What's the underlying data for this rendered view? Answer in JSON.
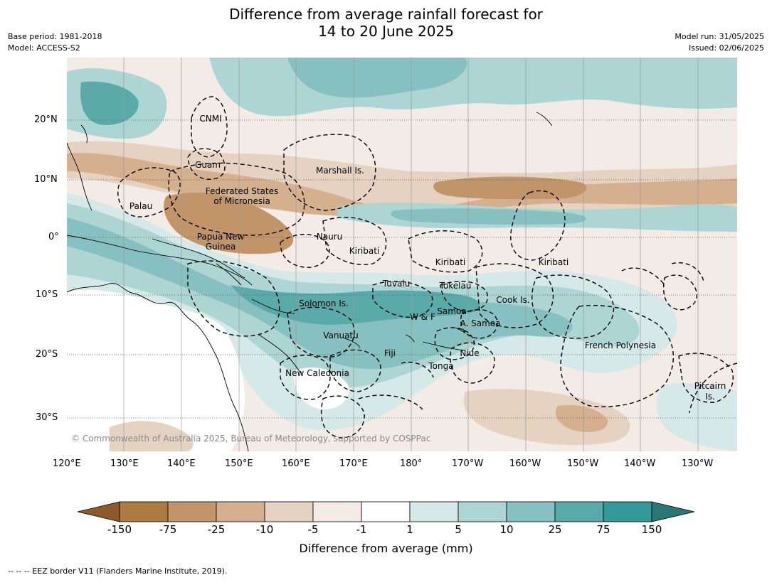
{
  "header": {
    "title_line1": "Difference from average rainfall forecast for",
    "title_line2": "14 to 20 June 2025",
    "base_period": "Base period: 1981-2018",
    "model": "Model: ACCESS-S2",
    "model_run": "Model run: 31/05/2025",
    "issued": "Issued: 02/06/2025"
  },
  "map": {
    "labels": {
      "cnmi": "CNMI",
      "guam": "Guam",
      "marshall": "Marshall Is.",
      "fsm1": "Federated States",
      "fsm2": "of Micronesia",
      "palau": "Palau",
      "png1": "Papua New",
      "png2": "Guinea",
      "nauru": "Nauru",
      "kiribati_w": "Kiribati",
      "kiribati_c": "Kiribati",
      "kiribati_e": "Kiribati",
      "tuvalu": "Tuvalu",
      "tokelau": "Tokelau",
      "cook": "Cook Is.",
      "solomon": "Solomon Is.",
      "wf": "W & F",
      "samoa": "Samoa",
      "asamoa": "A. Samoa",
      "vanuatu": "Vanuatu",
      "fiji": "Fiji",
      "niue": "Niue",
      "tonga": "Tonga",
      "fp": "French Polynesia",
      "nc": "New Caledonia",
      "pitcairn1": "Pitcairn",
      "pitcairn2": "Is."
    },
    "copyright": "© Commonwealth of Australia 2025, Bureau of Meteorology, supported by COSPPac",
    "lat_labels": [
      "20°N",
      "10°N",
      "0°",
      "10°S",
      "20°S",
      "30°S"
    ],
    "lon_labels": [
      "120°E",
      "130°E",
      "140°E",
      "150°E",
      "160°E",
      "170°E",
      "180°",
      "170°W",
      "160°W",
      "150°W",
      "140°W",
      "130°W"
    ]
  },
  "colorbar": {
    "title": "Difference from average (mm)",
    "ticks": [
      "-150",
      "-75",
      "-25",
      "-10",
      "-5",
      "-1",
      "1",
      "5",
      "10",
      "25",
      "75",
      "150"
    ],
    "colors": [
      "#8c5a2b",
      "#ad7a41",
      "#c29469",
      "#d4b08f",
      "#e6d2c1",
      "#f3ebe5",
      "#ffffff",
      "#d5e9e8",
      "#acd5d4",
      "#86c0c1",
      "#5aaaa9",
      "#349a99",
      "#2a7674"
    ]
  },
  "footer": {
    "eez_note": "--  --  -- EEZ border V11 (Flanders Marine Institute, 2019)."
  }
}
